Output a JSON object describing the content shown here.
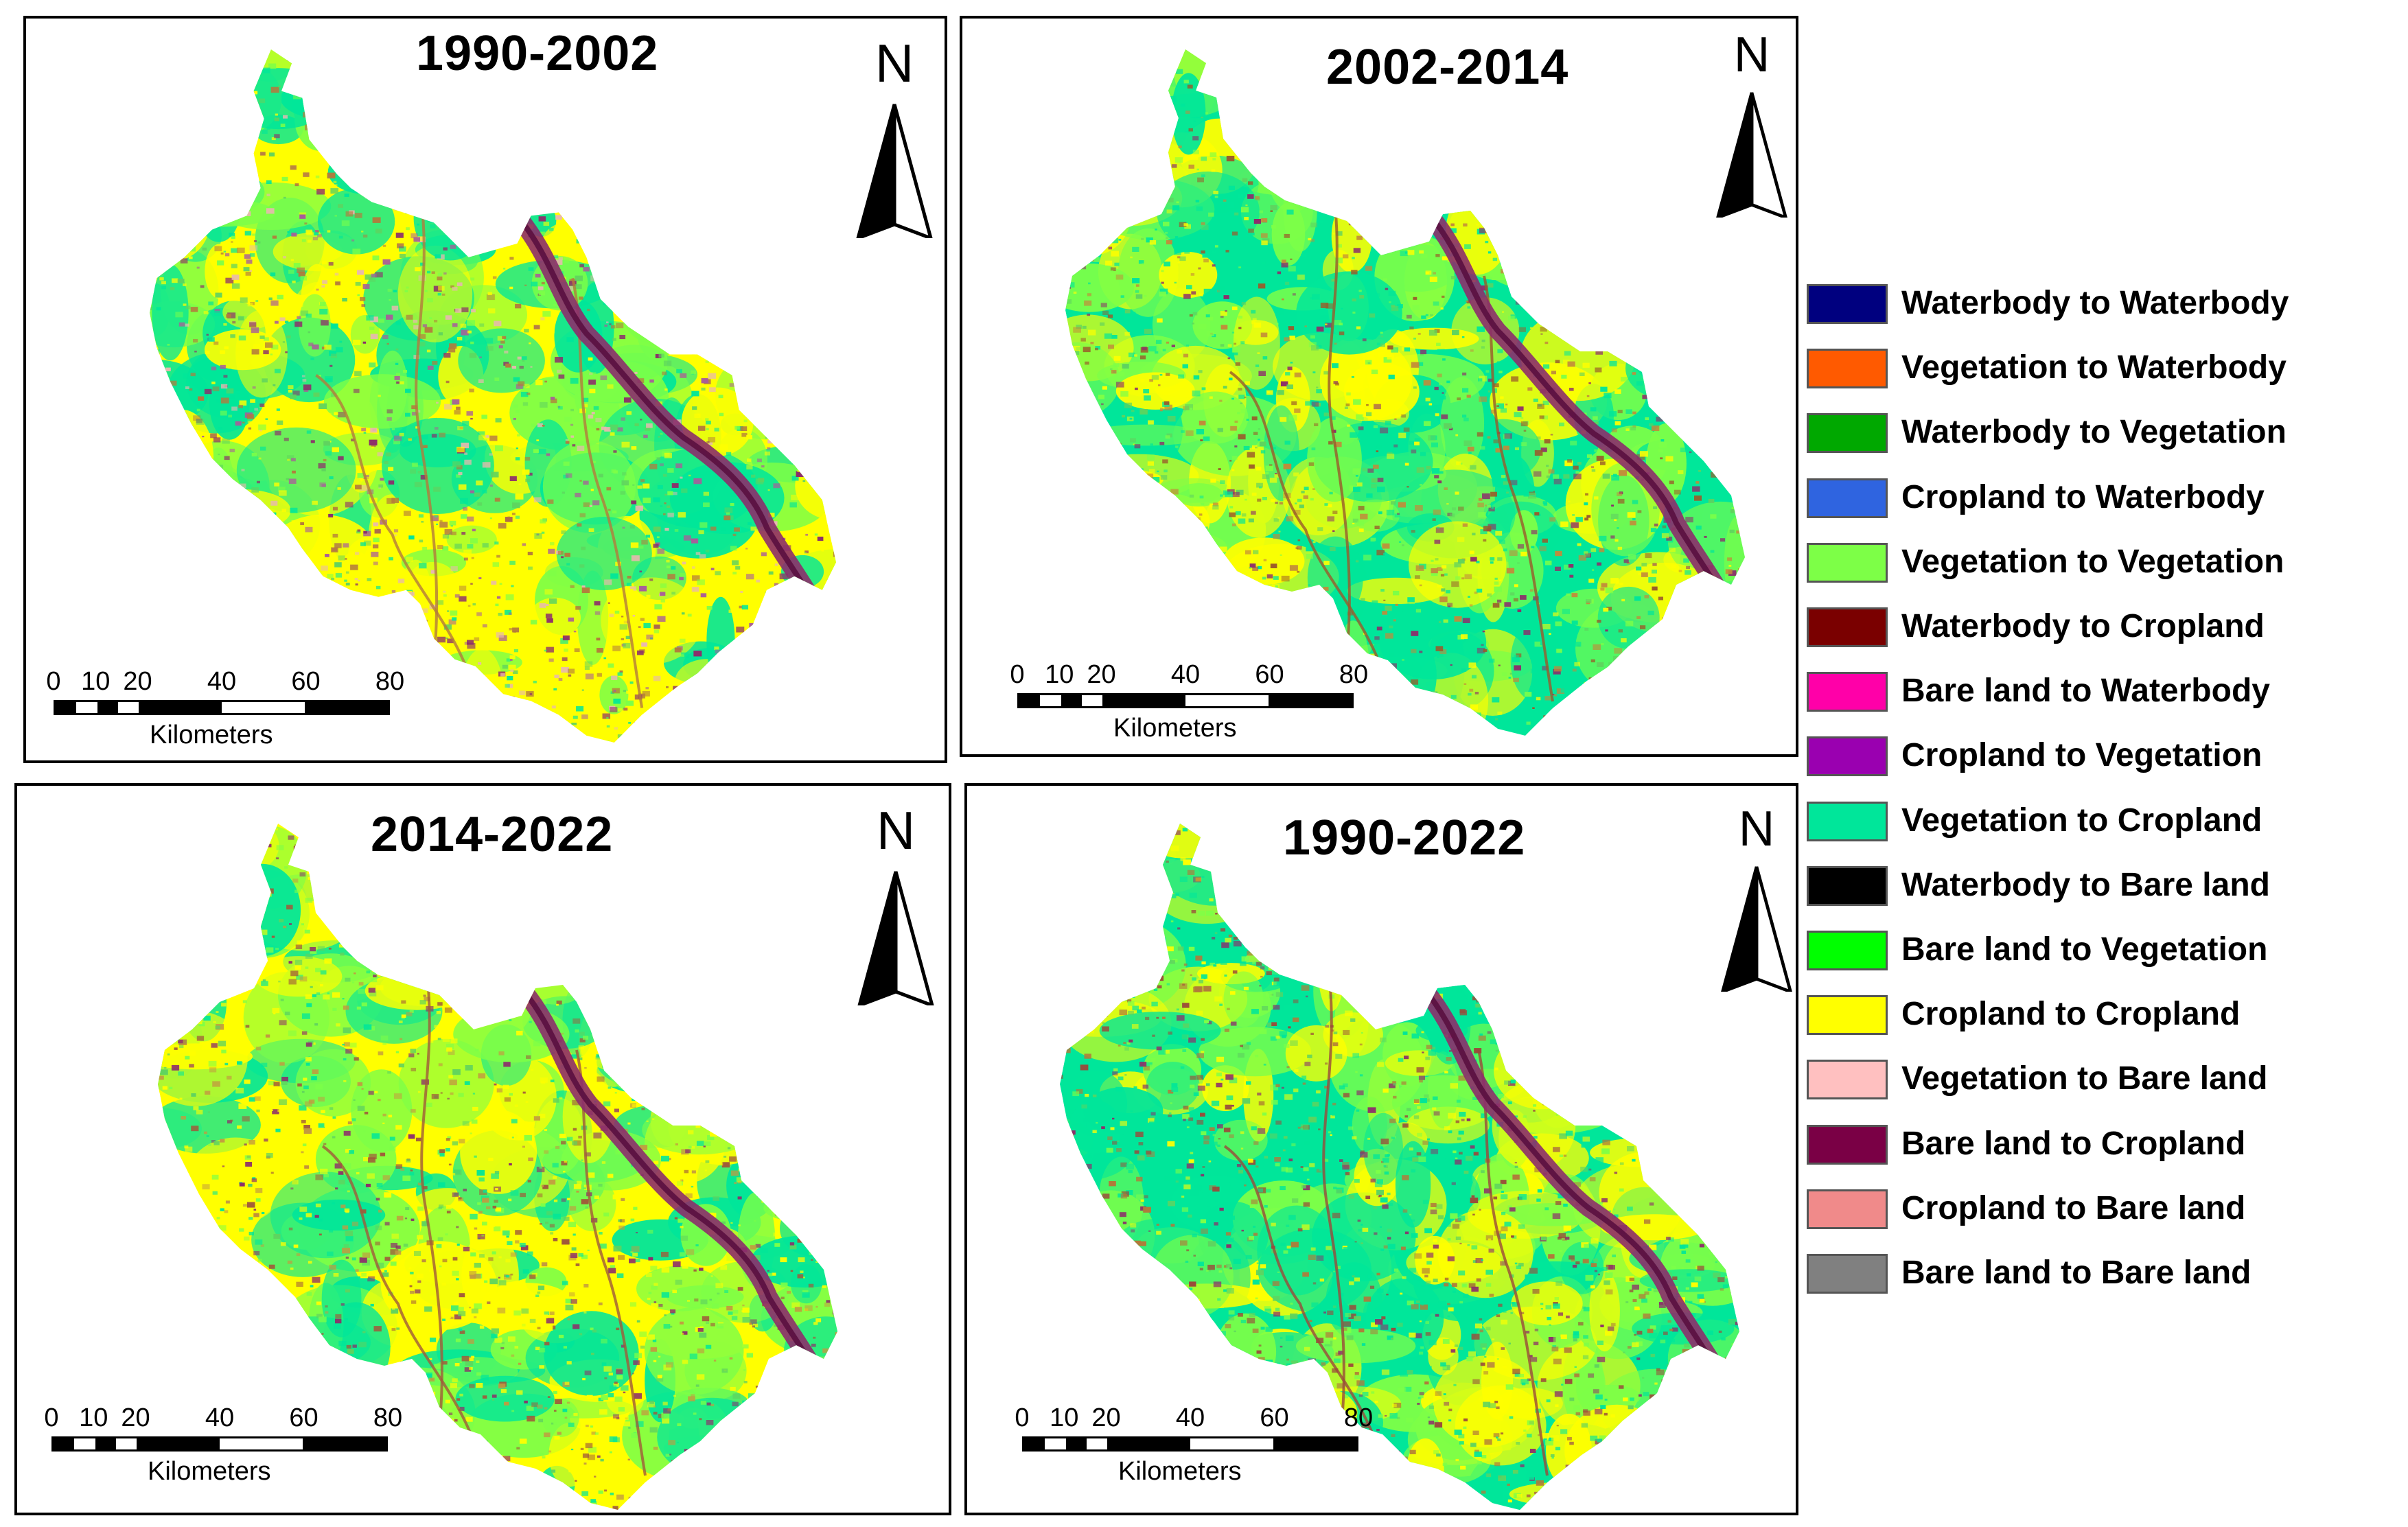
{
  "panels": [
    {
      "title": "1990-2002",
      "north_label": "N",
      "scale_ticks": [
        "0",
        "10",
        "20",
        "40",
        "60",
        "80"
      ],
      "scale_unit": "Kilometers",
      "palette": [
        "#ffff00",
        "#7dff47",
        "#00e69a",
        "#b37a3c",
        "#8c2e6b",
        "#e8b8b0",
        "#5fd35f",
        "#a85c9a"
      ]
    },
    {
      "title": "2002-2014",
      "north_label": "N",
      "scale_ticks": [
        "0",
        "10",
        "20",
        "40",
        "60",
        "80"
      ],
      "scale_unit": "Kilometers",
      "palette": [
        "#00e69a",
        "#ffff00",
        "#7dff47",
        "#9a5a2a",
        "#8c2e6b",
        "#5fd35f",
        "#00e69a",
        "#c28a3a"
      ]
    },
    {
      "title": "2014-2022",
      "north_label": "N",
      "scale_ticks": [
        "0",
        "10",
        "20",
        "40",
        "60",
        "80"
      ],
      "scale_unit": "Kilometers",
      "palette": [
        "#ffff00",
        "#00e69a",
        "#7dff47",
        "#a05a3a",
        "#8c2e6b",
        "#ffff00",
        "#5fd35f",
        "#c29a40"
      ]
    },
    {
      "title": "1990-2022",
      "north_label": "N",
      "scale_ticks": [
        "0",
        "10",
        "20",
        "40",
        "60",
        "80"
      ],
      "scale_unit": "Kilometers",
      "palette": [
        "#00e69a",
        "#7dff47",
        "#ffff00",
        "#9a4a3a",
        "#8c2e6b",
        "#00e69a",
        "#5fd35f",
        "#b07a3a"
      ]
    }
  ],
  "legend": [
    {
      "label": "Waterbody to Waterbody",
      "color": "#00007f"
    },
    {
      "label": "Vegetation to Waterbody",
      "color": "#ff5a00"
    },
    {
      "label": "Waterbody to Vegetation",
      "color": "#00a800"
    },
    {
      "label": "Cropland to Waterbody",
      "color": "#2f64e0"
    },
    {
      "label": "Vegetation to Vegetation",
      "color": "#7dff47"
    },
    {
      "label": "Waterbody to Cropland",
      "color": "#7a0000"
    },
    {
      "label": "Bare land to Waterbody",
      "color": "#ff00a8"
    },
    {
      "label": "Cropland to Vegetation",
      "color": "#9a00b0"
    },
    {
      "label": "Vegetation to Cropland",
      "color": "#00e69a"
    },
    {
      "label": "Waterbody to Bare land",
      "color": "#000000"
    },
    {
      "label": "Bare land to Vegetation",
      "color": "#00ff00"
    },
    {
      "label": "Cropland to Cropland",
      "color": "#ffff00"
    },
    {
      "label": "Vegetation to Bare land",
      "color": "#ffc0c0"
    },
    {
      "label": "Bare land to Cropland",
      "color": "#7a0045"
    },
    {
      "label": "Cropland to Bare land",
      "color": "#f08a8a"
    },
    {
      "label": "Bare land to Bare land",
      "color": "#808080"
    }
  ]
}
